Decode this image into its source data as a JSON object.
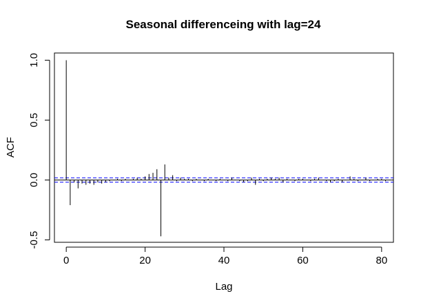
{
  "chart_data": {
    "type": "bar",
    "title": "Seasonal differenceing with lag=24",
    "xlabel": "Lag",
    "ylabel": "ACF",
    "xlim": [
      -3,
      83
    ],
    "ylim": [
      -0.52,
      1.06
    ],
    "x_ticks": [
      0,
      20,
      40,
      60,
      80
    ],
    "x_tick_labels": [
      "0",
      "20",
      "40",
      "60",
      "80"
    ],
    "y_ticks": [
      -0.5,
      0.0,
      0.5,
      1.0
    ],
    "y_tick_labels": [
      "-0.5",
      "0.0",
      "0.5",
      "1.0"
    ],
    "confidence_band": [
      -0.018,
      0.018
    ],
    "lags": [
      0,
      1,
      2,
      3,
      4,
      5,
      6,
      7,
      8,
      9,
      10,
      11,
      12,
      13,
      14,
      15,
      16,
      17,
      18,
      19,
      20,
      21,
      22,
      23,
      24,
      25,
      26,
      27,
      28,
      29,
      30,
      31,
      32,
      33,
      34,
      35,
      36,
      37,
      38,
      39,
      40,
      41,
      42,
      43,
      44,
      45,
      46,
      47,
      48,
      49,
      50,
      51,
      52,
      53,
      54,
      55,
      56,
      57,
      58,
      59,
      60,
      61,
      62,
      63,
      64,
      65,
      66,
      67,
      68,
      69,
      70,
      71,
      72,
      73,
      74,
      75,
      76,
      77,
      78,
      79,
      80,
      81
    ],
    "values": [
      1.0,
      -0.21,
      -0.02,
      -0.07,
      -0.03,
      -0.04,
      -0.03,
      -0.04,
      -0.02,
      -0.03,
      -0.02,
      -0.01,
      0.0,
      0.01,
      -0.01,
      0.01,
      0.0,
      0.01,
      0.02,
      0.01,
      0.03,
      0.05,
      0.06,
      0.09,
      -0.47,
      0.13,
      0.02,
      0.04,
      -0.01,
      0.02,
      0.01,
      0.01,
      -0.01,
      0.01,
      0.0,
      -0.01,
      0.01,
      0.0,
      -0.01,
      0.01,
      0.0,
      -0.01,
      0.02,
      0.0,
      -0.01,
      -0.02,
      -0.01,
      0.02,
      -0.04,
      0.01,
      -0.01,
      0.01,
      0.02,
      0.01,
      0.02,
      -0.02,
      0.01,
      0.0,
      -0.01,
      0.01,
      0.01,
      0.0,
      -0.01,
      0.01,
      0.02,
      0.0,
      -0.01,
      -0.02,
      -0.01,
      0.01,
      -0.02,
      0.0,
      0.03,
      0.01,
      -0.01,
      0.0,
      0.02,
      -0.01,
      0.0,
      0.01,
      0.01,
      -0.01
    ],
    "bar_color": "#000000",
    "band_color": "#0000ff",
    "grid": false
  }
}
